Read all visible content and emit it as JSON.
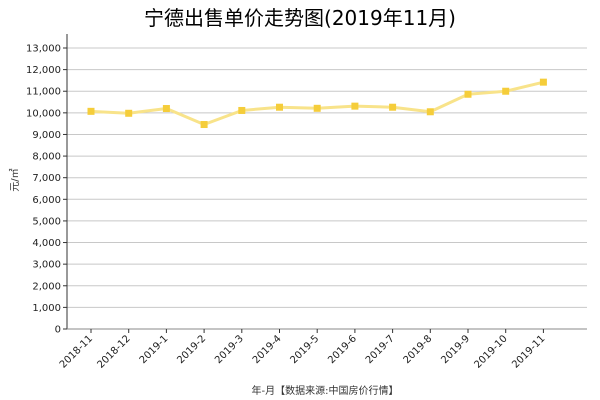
{
  "chart_data": {
    "type": "line",
    "title": "宁德出售单价走势图(2019年11月)",
    "xlabel": "年-月【数据来源:中国房价行情】",
    "ylabel": "元/㎡",
    "categories": [
      "2018-11",
      "2018-12",
      "2019-1",
      "2019-2",
      "2019-3",
      "2019-4",
      "2019-5",
      "2019-6",
      "2019-7",
      "2019-8",
      "2019-9",
      "2019-10",
      "2019-11"
    ],
    "series": [
      {
        "values": [
          10070,
          9980,
          10200,
          9460,
          10110,
          10260,
          10210,
          10310,
          10260,
          10050,
          10860,
          11000,
          11420
        ]
      }
    ],
    "ylim": [
      0,
      13000
    ],
    "yticks": [
      "0",
      "1,000",
      "2,000",
      "3,000",
      "4,000",
      "5,000",
      "6,000",
      "7,000",
      "8,000",
      "9,000",
      "10,000",
      "11,000",
      "12,000",
      "13,000"
    ],
    "grid": true,
    "line_color": "#f8e38a",
    "marker_color": "#f5cd3a"
  }
}
